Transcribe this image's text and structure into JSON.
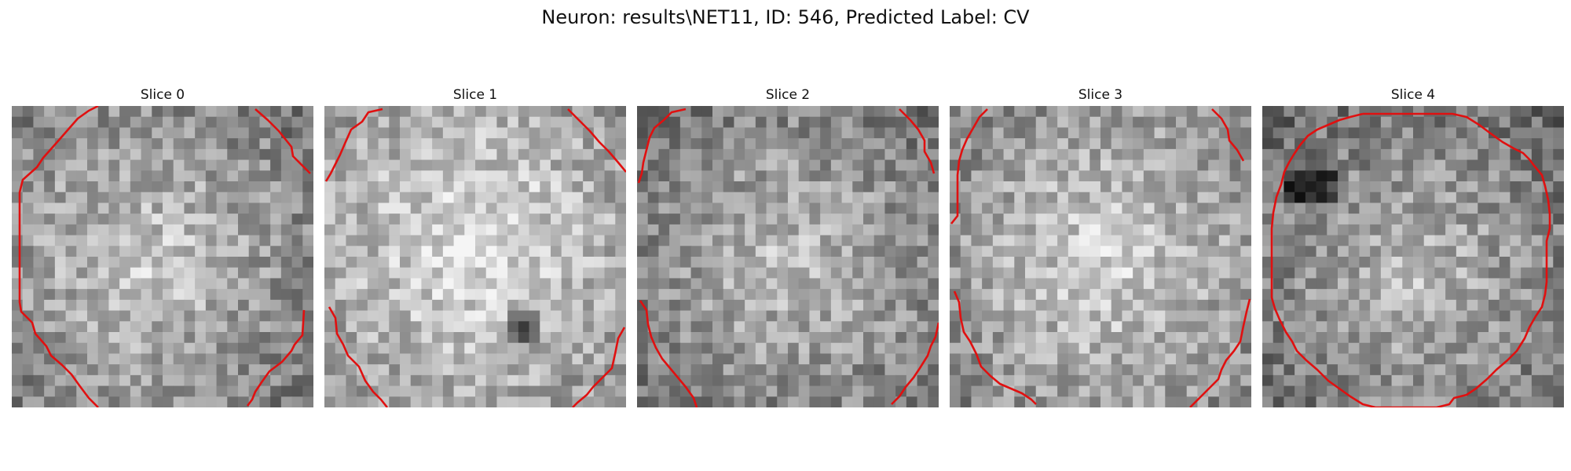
{
  "figure": {
    "suptitle": "Neuron: results\\NET11, ID: 546, Predicted Label: CV",
    "contour_color": "#e01010",
    "colormap": "gray",
    "panels": [
      {
        "title": "Slice 0"
      },
      {
        "title": "Slice 1"
      },
      {
        "title": "Slice 2"
      },
      {
        "title": "Slice 3"
      },
      {
        "title": "Slice 4"
      }
    ]
  }
}
